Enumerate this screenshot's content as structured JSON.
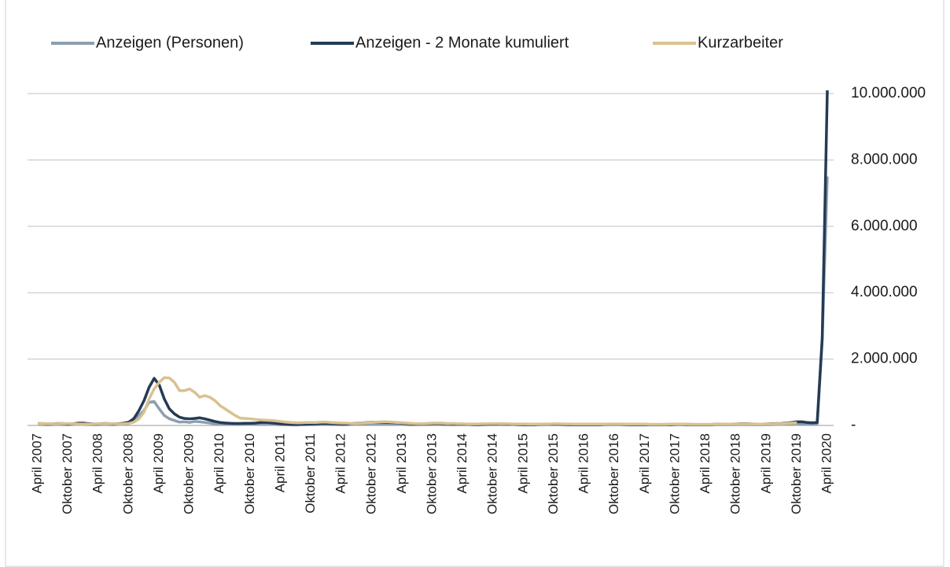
{
  "chart_data": {
    "type": "line",
    "categories": [
      "April 2007",
      null,
      null,
      null,
      null,
      null,
      "Oktober 2007",
      null,
      null,
      null,
      null,
      null,
      "April 2008",
      null,
      null,
      null,
      null,
      null,
      "Oktober 2008",
      null,
      null,
      null,
      null,
      null,
      "April 2009",
      null,
      null,
      null,
      null,
      null,
      "Oktober 2009",
      null,
      null,
      null,
      null,
      null,
      "April 2010",
      null,
      null,
      null,
      null,
      null,
      "Oktober 2010",
      null,
      null,
      null,
      null,
      null,
      "April 2011",
      null,
      null,
      null,
      null,
      null,
      "Oktober 2011",
      null,
      null,
      null,
      null,
      null,
      "April 2012",
      null,
      null,
      null,
      null,
      null,
      "Oktober 2012",
      null,
      null,
      null,
      null,
      null,
      "April 2013",
      null,
      null,
      null,
      null,
      null,
      "Oktober 2013",
      null,
      null,
      null,
      null,
      null,
      "April 2014",
      null,
      null,
      null,
      null,
      null,
      "Oktober 2014",
      null,
      null,
      null,
      null,
      null,
      "April 2015",
      null,
      null,
      null,
      null,
      null,
      "Oktober 2015",
      null,
      null,
      null,
      null,
      null,
      "April 2016",
      null,
      null,
      null,
      null,
      null,
      "Oktober 2016",
      null,
      null,
      null,
      null,
      null,
      "April 2017",
      null,
      null,
      null,
      null,
      null,
      "Oktober 2017",
      null,
      null,
      null,
      null,
      null,
      "April 2018",
      null,
      null,
      null,
      null,
      null,
      "Oktober 2018",
      null,
      null,
      null,
      null,
      null,
      "April 2019",
      null,
      null,
      null,
      null,
      null,
      "Oktober 2019",
      null,
      null,
      null,
      null,
      null,
      "April 2020"
    ],
    "series": [
      {
        "name": "Anzeigen (Personen)",
        "color": "#8c9fb1",
        "values": [
          30000,
          25000,
          20000,
          25000,
          30000,
          25000,
          20000,
          30000,
          40000,
          30000,
          25000,
          20000,
          25000,
          30000,
          25000,
          20000,
          30000,
          40000,
          60000,
          150000,
          300000,
          450000,
          700000,
          720000,
          500000,
          300000,
          200000,
          150000,
          100000,
          110000,
          90000,
          120000,
          110000,
          90000,
          70000,
          50000,
          40000,
          35000,
          30000,
          30000,
          30000,
          35000,
          30000,
          40000,
          50000,
          45000,
          35000,
          30000,
          20000,
          20000,
          15000,
          15000,
          20000,
          20000,
          25000,
          25000,
          30000,
          30000,
          25000,
          25000,
          20000,
          25000,
          30000,
          35000,
          40000,
          45000,
          50000,
          45000,
          50000,
          40000,
          45000,
          35000,
          30000,
          25000,
          20000,
          20000,
          25000,
          25000,
          30000,
          30000,
          25000,
          25000,
          20000,
          20000,
          20000,
          20000,
          15000,
          15000,
          20000,
          20000,
          25000,
          25000,
          20000,
          20000,
          20000,
          15000,
          15000,
          15000,
          15000,
          20000,
          20000,
          20000,
          20000,
          20000,
          15000,
          15000,
          15000,
          15000,
          15000,
          15000,
          15000,
          15000,
          20000,
          20000,
          20000,
          20000,
          15000,
          15000,
          15000,
          15000,
          15000,
          15000,
          15000,
          15000,
          15000,
          15000,
          20000,
          20000,
          15000,
          15000,
          15000,
          15000,
          15000,
          15000,
          20000,
          20000,
          20000,
          20000,
          25000,
          25000,
          25000,
          20000,
          20000,
          20000,
          25000,
          25000,
          30000,
          30000,
          40000,
          50000,
          60000,
          50000,
          40000,
          40000,
          50000,
          2600000,
          7500000
        ]
      },
      {
        "name": "Anzeigen - 2 Monate kumuliert",
        "color": "#243b55",
        "values": [
          55000,
          55000,
          45000,
          45000,
          55000,
          55000,
          45000,
          50000,
          70000,
          70000,
          55000,
          45000,
          45000,
          55000,
          55000,
          45000,
          50000,
          70000,
          100000,
          210000,
          450000,
          750000,
          1150000,
          1420000,
          1220000,
          800000,
          500000,
          350000,
          250000,
          210000,
          200000,
          210000,
          230000,
          200000,
          160000,
          120000,
          90000,
          75000,
          65000,
          60000,
          60000,
          65000,
          65000,
          70000,
          90000,
          95000,
          80000,
          65000,
          50000,
          40000,
          35000,
          30000,
          35000,
          40000,
          45000,
          50000,
          55000,
          60000,
          55000,
          50000,
          45000,
          45000,
          55000,
          65000,
          75000,
          85000,
          95000,
          95000,
          95000,
          90000,
          85000,
          80000,
          65000,
          55000,
          45000,
          40000,
          45000,
          50000,
          55000,
          60000,
          55000,
          50000,
          45000,
          40000,
          40000,
          40000,
          35000,
          30000,
          35000,
          40000,
          45000,
          50000,
          45000,
          40000,
          40000,
          35000,
          30000,
          30000,
          30000,
          35000,
          40000,
          40000,
          40000,
          40000,
          35000,
          30000,
          30000,
          30000,
          30000,
          30000,
          30000,
          30000,
          35000,
          40000,
          40000,
          40000,
          35000,
          30000,
          30000,
          30000,
          30000,
          30000,
          30000,
          30000,
          30000,
          30000,
          35000,
          40000,
          35000,
          30000,
          30000,
          30000,
          30000,
          30000,
          35000,
          40000,
          40000,
          40000,
          45000,
          50000,
          50000,
          45000,
          40000,
          40000,
          45000,
          50000,
          55000,
          60000,
          70000,
          90000,
          110000,
          110000,
          90000,
          80000,
          90000,
          2650000,
          10100000
        ]
      },
      {
        "name": "Kurzarbeiter",
        "color": "#d9c191",
        "values": [
          50000,
          55000,
          50000,
          45000,
          50000,
          60000,
          55000,
          50000,
          45000,
          40000,
          40000,
          45000,
          50000,
          50000,
          55000,
          50000,
          45000,
          50000,
          60000,
          100000,
          200000,
          400000,
          800000,
          1100000,
          1300000,
          1440000,
          1430000,
          1300000,
          1050000,
          1050000,
          1100000,
          1000000,
          850000,
          900000,
          850000,
          750000,
          600000,
          500000,
          400000,
          300000,
          220000,
          210000,
          200000,
          180000,
          170000,
          160000,
          150000,
          140000,
          120000,
          100000,
          90000,
          80000,
          80000,
          90000,
          90000,
          90000,
          100000,
          100000,
          90000,
          80000,
          70000,
          70000,
          60000,
          60000,
          70000,
          80000,
          90000,
          100000,
          110000,
          110000,
          100000,
          90000,
          80000,
          70000,
          60000,
          50000,
          50000,
          60000,
          70000,
          70000,
          70000,
          60000,
          60000,
          50000,
          50000,
          45000,
          45000,
          45000,
          50000,
          50000,
          55000,
          55000,
          50000,
          50000,
          45000,
          45000,
          45000,
          40000,
          40000,
          40000,
          45000,
          45000,
          50000,
          50000,
          45000,
          45000,
          40000,
          40000,
          40000,
          40000,
          40000,
          40000,
          40000,
          45000,
          45000,
          45000,
          40000,
          40000,
          40000,
          40000,
          40000,
          35000,
          35000,
          35000,
          35000,
          40000,
          40000,
          40000,
          40000,
          35000,
          35000,
          35000,
          35000,
          35000,
          35000,
          40000,
          40000,
          40000,
          45000,
          45000,
          45000,
          40000,
          40000,
          40000,
          45000,
          45000,
          50000,
          50000,
          60000,
          70000,
          80000,
          null,
          null,
          null,
          null,
          null,
          null
        ]
      }
    ],
    "ylim": [
      0,
      10000000
    ],
    "yticks": [
      {
        "value": 0,
        "label": "-"
      },
      {
        "value": 2000000,
        "label": "2.000.000"
      },
      {
        "value": 4000000,
        "label": "4.000.000"
      },
      {
        "value": 6000000,
        "label": "6.000.000"
      },
      {
        "value": 8000000,
        "label": "8.000.000"
      },
      {
        "value": 10000000,
        "label": "10.000.000"
      }
    ],
    "grid": true,
    "legend": "top"
  }
}
